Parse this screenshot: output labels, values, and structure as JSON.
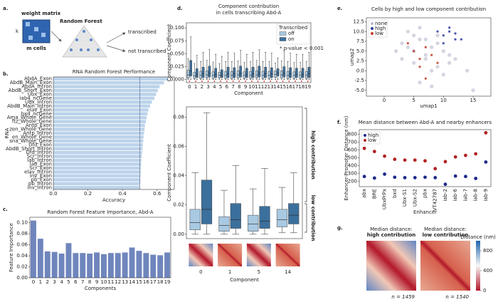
{
  "diagram": {
    "panel": "a.",
    "matrix_label": "weight matrix",
    "rows_label": "k",
    "cols_label": "m cells",
    "model_label": "Random Forest",
    "outputs": [
      "transcribed",
      "not transcribed"
    ]
  },
  "chart_data": [
    {
      "type": "bar",
      "orientation": "horizontal",
      "panel": "b.",
      "title": "RNA Random Forest Performance",
      "x_label": "Accuracy",
      "y_label": "RNA",
      "categories": [
        "AbdA_Exon",
        "AbdB_Main_Exon",
        "AbdA_Intron",
        "AbdB_Short_Exon",
        "Ubx_Exon",
        "iab4_ncGene",
        "Ubx_Intron",
        "AbdB_Main_Intron",
        "elav_Exon",
        "bxd_ncGene",
        "Ama_Whole_Gene",
        "ftz_Whole_Gene",
        "Antp_Exon",
        "zen_Whole_Gene",
        "Antp_Intron",
        "en_Whole_Gene",
        "sna_Whole_Gene",
        "Dfd_Exon",
        "AbdB_Short_Intron",
        "Dfd_Intron",
        "Scr_Intron",
        "lab_Intron",
        "lab_Exon",
        "Scr_Exon",
        "elav_Intron",
        "inv_Exon",
        "pb_Exon",
        "pb_Intron",
        "inv_Intron"
      ],
      "values": [
        0.665,
        0.64,
        0.615,
        0.605,
        0.595,
        0.585,
        0.57,
        0.56,
        0.55,
        0.545,
        0.54,
        0.535,
        0.53,
        0.528,
        0.525,
        0.522,
        0.52,
        0.518,
        0.516,
        0.514,
        0.512,
        0.51,
        0.508,
        0.506,
        0.505,
        0.504,
        0.503,
        0.502,
        0.501
      ],
      "color": "#bcd3ea",
      "xlim": [
        0,
        0.7
      ],
      "xticks": [
        {
          "value": 0,
          "label": "0.0"
        },
        {
          "value": 0.2,
          "label": "0.2"
        },
        {
          "value": 0.4,
          "label": "0.4"
        },
        {
          "value": 0.6,
          "label": "0.6"
        }
      ],
      "reference_line": 0.5
    },
    {
      "type": "bar",
      "orientation": "vertical",
      "panel": "c.",
      "title": "Random Forest Feature Importance, Abd-A",
      "x_label": "Components",
      "y_label": "Feature Importance",
      "categories": [
        "0",
        "1",
        "2",
        "3",
        "4",
        "5",
        "6",
        "7",
        "8",
        "9",
        "10",
        "11",
        "12",
        "13",
        "14",
        "15",
        "16",
        "17",
        "18",
        "19"
      ],
      "values": [
        0.104,
        0.071,
        0.048,
        0.047,
        0.044,
        0.063,
        0.045,
        0.045,
        0.044,
        0.046,
        0.043,
        0.045,
        0.045,
        0.046,
        0.055,
        0.049,
        0.045,
        0.042,
        0.041,
        0.046
      ],
      "color": "#6f86bd",
      "ylim": [
        0,
        0.11
      ],
      "yticks": [
        {
          "value": 0,
          "label": "0.00"
        },
        {
          "value": 0.02,
          "label": "0.02"
        },
        {
          "value": 0.04,
          "label": "0.04"
        },
        {
          "value": 0.06,
          "label": "0.06"
        },
        {
          "value": 0.08,
          "label": "0.08"
        },
        {
          "value": 0.1,
          "label": "0.10"
        }
      ]
    },
    {
      "type": "box",
      "panel": "d.",
      "title": "Component contribution",
      "subtitle": "in cells transcribing Abd-A",
      "x_label": "Component",
      "y_label": "Component Coefficient",
      "legend_title": "Transcribed",
      "annotation": "* p-value < 0.001",
      "categories": [
        "0",
        "1",
        "2",
        "3",
        "4",
        "5",
        "6",
        "7",
        "8",
        "9",
        "10",
        "11",
        "12",
        "13",
        "14",
        "15",
        "16",
        "17",
        "18",
        "19"
      ],
      "ylim": [
        -0.006,
        0.11
      ],
      "yticks": [
        {
          "value": 0,
          "label": "0.000"
        },
        {
          "value": 0.025,
          "label": "0.025"
        },
        {
          "value": 0.05,
          "label": "0.050"
        },
        {
          "value": 0.075,
          "label": "0.075"
        },
        {
          "value": 0.1,
          "label": "0.100"
        }
      ],
      "series": [
        {
          "name": "off",
          "color": "#a9c9e2",
          "whislo": [
            0,
            0,
            0,
            0,
            0,
            0,
            0,
            0,
            0,
            0,
            0,
            0,
            0,
            0,
            0,
            0,
            0,
            0,
            0,
            0
          ],
          "q1": [
            0.003,
            0.002,
            0.002,
            0.003,
            0.002,
            0.003,
            0.002,
            0.002,
            0.003,
            0.002,
            0.002,
            0.003,
            0.002,
            0.002,
            0.004,
            0.003,
            0.002,
            0.002,
            0.002,
            0.002
          ],
          "median": [
            0.009,
            0.007,
            0.008,
            0.009,
            0.008,
            0.008,
            0.008,
            0.008,
            0.009,
            0.008,
            0.008,
            0.009,
            0.008,
            0.008,
            0.01,
            0.009,
            0.008,
            0.008,
            0.008,
            0.008
          ],
          "q3": [
            0.018,
            0.014,
            0.016,
            0.017,
            0.015,
            0.014,
            0.016,
            0.016,
            0.017,
            0.015,
            0.016,
            0.017,
            0.016,
            0.016,
            0.017,
            0.017,
            0.016,
            0.015,
            0.015,
            0.016
          ],
          "whishi": [
            0.04,
            0.031,
            0.035,
            0.037,
            0.034,
            0.031,
            0.035,
            0.035,
            0.036,
            0.033,
            0.035,
            0.037,
            0.035,
            0.035,
            0.032,
            0.036,
            0.035,
            0.033,
            0.033,
            0.035
          ]
        },
        {
          "name": "on",
          "color": "#3b6f9c",
          "whislo": [
            0,
            0,
            0,
            0,
            0,
            0,
            0,
            0,
            0,
            0,
            0,
            0,
            0,
            0,
            0,
            0,
            0,
            0,
            0,
            0
          ],
          "q1": [
            0.007,
            0.004,
            0.004,
            0.005,
            0.004,
            0.004,
            0.004,
            0.004,
            0.005,
            0.004,
            0.004,
            0.005,
            0.004,
            0.004,
            0.007,
            0.005,
            0.004,
            0.004,
            0.004,
            0.004
          ],
          "median": [
            0.017,
            0.01,
            0.011,
            0.012,
            0.01,
            0.009,
            0.011,
            0.011,
            0.012,
            0.01,
            0.011,
            0.012,
            0.011,
            0.011,
            0.013,
            0.012,
            0.011,
            0.01,
            0.01,
            0.011
          ],
          "q3": [
            0.037,
            0.021,
            0.024,
            0.026,
            0.022,
            0.019,
            0.024,
            0.023,
            0.026,
            0.022,
            0.024,
            0.026,
            0.024,
            0.023,
            0.021,
            0.025,
            0.023,
            0.022,
            0.022,
            0.024
          ],
          "whishi": [
            0.083,
            0.047,
            0.053,
            0.058,
            0.049,
            0.045,
            0.053,
            0.051,
            0.057,
            0.049,
            0.053,
            0.058,
            0.053,
            0.051,
            0.042,
            0.056,
            0.051,
            0.049,
            0.049,
            0.053
          ]
        }
      ]
    },
    {
      "type": "box",
      "x_label": "Component",
      "y_label": "Component Coefficient",
      "high_label": "high contribution",
      "low_label": "low contribution",
      "categories": [
        "0",
        "1",
        "5",
        "14"
      ],
      "ylim": [
        -0.003,
        0.087
      ],
      "yticks": [
        {
          "value": 0,
          "label": "0.00"
        },
        {
          "value": 0.02,
          "label": "0.02"
        },
        {
          "value": 0.04,
          "label": "0.04"
        },
        {
          "value": 0.06,
          "label": "0.06"
        },
        {
          "value": 0.08,
          "label": "0.08"
        }
      ],
      "series": [
        {
          "name": "off",
          "color": "#a9c9e2",
          "whislo": [
            0,
            0,
            0,
            0.001
          ],
          "q1": [
            0.003,
            0.002,
            0.002,
            0.005
          ],
          "median": [
            0.008,
            0.006,
            0.007,
            0.01
          ],
          "q3": [
            0.017,
            0.012,
            0.013,
            0.017
          ],
          "whishi": [
            0.042,
            0.03,
            0.031,
            0.032
          ]
        },
        {
          "name": "on",
          "color": "#3b6f9c",
          "whislo": [
            0,
            0,
            0,
            0.001
          ],
          "q1": [
            0.007,
            0.004,
            0.004,
            0.007
          ],
          "median": [
            0.017,
            0.01,
            0.009,
            0.013
          ],
          "q3": [
            0.037,
            0.021,
            0.019,
            0.021
          ],
          "whishi": [
            0.083,
            0.047,
            0.045,
            0.042
          ]
        }
      ]
    },
    {
      "type": "scatter",
      "panel": "e.",
      "title": "Cells by high and low component contribution",
      "x_label": "umap1",
      "y_label": "umap2",
      "xlim": [
        -3,
        18
      ],
      "ylim": [
        -6.5,
        13.5
      ],
      "xticks": [
        0,
        5,
        10,
        15
      ],
      "yticks": [
        {
          "value": -5,
          "label": "-5.0"
        },
        {
          "value": -2.5,
          "label": "-2.5"
        },
        {
          "value": 0,
          "label": "0.0"
        },
        {
          "value": 2.5,
          "label": "2.5"
        },
        {
          "value": 5,
          "label": "5.0"
        },
        {
          "value": 7.5,
          "label": "7.5"
        },
        {
          "value": 10,
          "label": "10.0"
        },
        {
          "value": 12.5,
          "label": "12.5"
        }
      ],
      "legend": "upper left",
      "series": [
        {
          "name": "none",
          "color": "#b9b9cc",
          "x": [
            2,
            3,
            4,
            5,
            6,
            7,
            8,
            9,
            10,
            11,
            3,
            5,
            7,
            9,
            12,
            4,
            6,
            8,
            10,
            6,
            8,
            5,
            7,
            9,
            11,
            14,
            15
          ],
          "y": [
            5,
            7,
            6,
            9,
            8,
            4,
            6,
            7,
            5,
            4,
            3,
            2,
            3,
            1,
            3,
            10,
            11,
            0,
            -1,
            -3,
            -4,
            5,
            8,
            9,
            2,
            0,
            -5
          ]
        },
        {
          "name": "high",
          "color": "#2b3a9c",
          "x": [
            10,
            11,
            12,
            11,
            9,
            12,
            13,
            10
          ],
          "y": [
            9,
            10,
            8,
            11,
            10,
            9.5,
            8,
            7
          ]
        },
        {
          "name": "low",
          "color": "#c0392b",
          "x": [
            5,
            6,
            7,
            8,
            4,
            6,
            9,
            7
          ],
          "y": [
            5,
            3,
            6,
            4,
            7,
            1,
            2,
            -2
          ]
        }
      ]
    },
    {
      "type": "scatter",
      "panel": "f.",
      "title": "Mean distance between Abd-A and nearby enhancers",
      "x_label": "Enhancer",
      "y_label": "Enhancer-Promoter Distance (nm)",
      "categories": [
        "abx",
        "BRE",
        "UbxPrPx",
        "bxd",
        "Ubx-S1",
        "Ubx-S2",
        "pbx",
        "VT42787",
        "iab-2",
        "iab-6",
        "iab-7",
        "iab-8",
        "iab-9"
      ],
      "ylim": [
        130,
        860
      ],
      "yticks": [
        200,
        300,
        400,
        500,
        600,
        700,
        800
      ],
      "legend": "upper left",
      "series": [
        {
          "name": "high",
          "color": "#1f2a8a",
          "values": [
            260,
            240,
            290,
            250,
            245,
            245,
            250,
            245,
            160,
            265,
            260,
            235,
            445
          ]
        },
        {
          "name": "low",
          "color": "#b22222",
          "values": [
            620,
            580,
            520,
            480,
            470,
            470,
            460,
            360,
            450,
            510,
            530,
            550,
            820
          ]
        }
      ]
    },
    {
      "type": "heatmap",
      "panel": "g.",
      "panels": [
        {
          "title": "Median distance:",
          "subtitle": "high contribution",
          "color": "#1a2a9c",
          "n_label": "n = 1459"
        },
        {
          "title": "Median distance:",
          "subtitle": "low contribution",
          "color": "#b01010",
          "n_label": "n = 1540"
        }
      ],
      "colorbar_label": "Distance (nm)",
      "clim": [
        0,
        1000
      ],
      "cticks": [
        0,
        400,
        800
      ]
    }
  ]
}
